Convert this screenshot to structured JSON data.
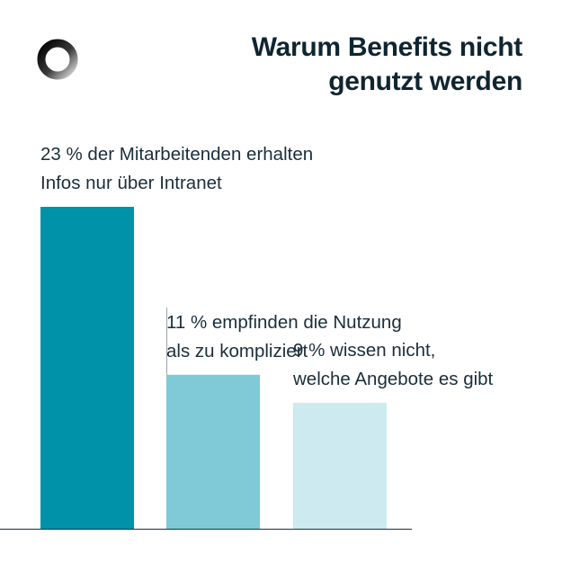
{
  "header": {
    "title_line1": "Warum Benefits nicht",
    "title_line2": "genutzt werden",
    "logo_icon": "ring-logo-icon"
  },
  "chart_data": {
    "type": "bar",
    "title": "Warum Benefits nicht genutzt werden",
    "unit": "%",
    "ylim": [
      0,
      23
    ],
    "grid": false,
    "legend": "none",
    "bars": [
      {
        "value": 23,
        "label_lines": [
          "23 % der Mitarbeitenden erhalten",
          "Infos nur über Intranet"
        ],
        "color": "#0092a9"
      },
      {
        "value": 11,
        "label_lines": [
          "11 % empfinden die Nutzung",
          "als zu kompliziert"
        ],
        "color": "#80c9d6"
      },
      {
        "value": 9,
        "label_lines": [
          "9 % wissen nicht,",
          "welche Angebote es gibt"
        ],
        "color": "#cdeaf0"
      }
    ],
    "colors": {
      "baseline": "#1a2e3b",
      "text": "#1a2e3b",
      "title": "#0f2531"
    }
  }
}
